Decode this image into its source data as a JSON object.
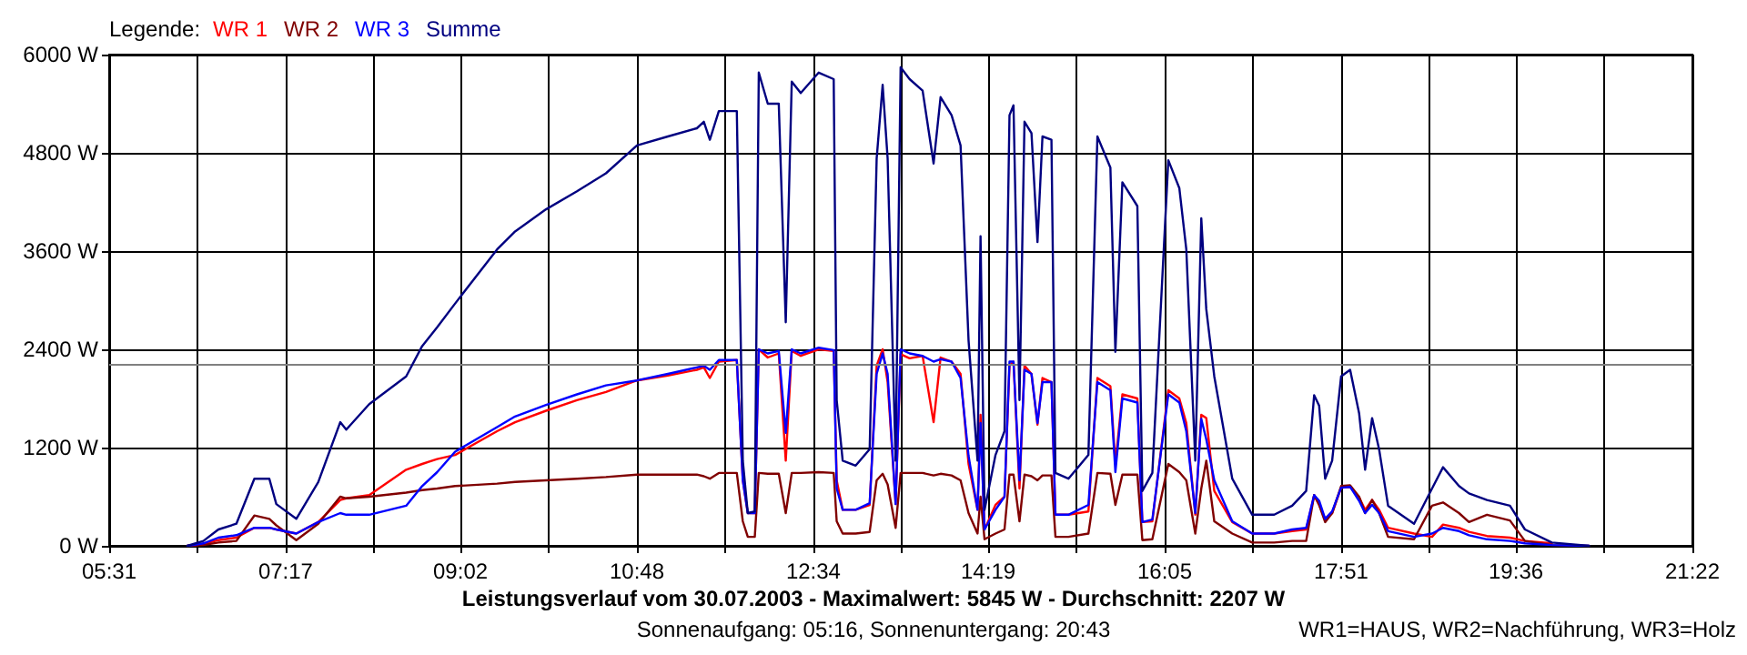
{
  "chart_data": {
    "type": "line",
    "title": "Leistungsverlauf vom 30.07.2003 - Maximalwert: 5845 W - Durchschnitt: 2207 W",
    "subtitle": "Sonnenaufgang: 05:16, Sonnenuntergang: 20:43",
    "legend_title": "Legende:",
    "annotations": [
      "WR1=HAUS, WR2=Nachführung, WR3=Holz"
    ],
    "x": [
      6.3,
      6.46,
      6.61,
      6.79,
      6.97,
      7.12,
      7.19,
      7.39,
      7.61,
      7.83,
      7.89,
      8.12,
      8.49,
      8.65,
      8.8,
      8.98,
      9.4,
      9.58,
      9.89,
      10.2,
      10.49,
      10.8,
      11.11,
      11.4,
      11.47,
      11.53,
      11.62,
      11.8,
      11.86,
      11.91,
      11.98,
      12.02,
      12.11,
      12.22,
      12.29,
      12.35,
      12.44,
      12.62,
      12.77,
      12.8,
      12.86,
      12.99,
      13.13,
      13.2,
      13.26,
      13.31,
      13.39,
      13.44,
      13.53,
      13.66,
      13.77,
      13.84,
      13.95,
      14.04,
      14.12,
      14.21,
      14.24,
      14.28,
      14.39,
      14.48,
      14.53,
      14.57,
      14.63,
      14.68,
      14.75,
      14.81,
      14.86,
      14.95,
      14.99,
      15.12,
      15.32,
      15.41,
      15.54,
      15.59,
      15.66,
      15.81,
      15.86,
      15.96,
      16.12,
      16.23,
      16.3,
      16.39,
      16.45,
      16.5,
      16.58,
      16.76,
      16.96,
      17.18,
      17.36,
      17.5,
      17.58,
      17.63,
      17.69,
      17.76,
      17.85,
      17.94,
      18.03,
      18.09,
      18.16,
      18.23,
      18.32,
      18.58,
      18.76,
      18.87,
      19.03,
      19.13,
      19.31,
      19.54,
      19.69,
      19.96,
      20.33
    ],
    "series": [
      {
        "name": "WR 1",
        "color": "#ff0000",
        "values": [
          0,
          20,
          70,
          100,
          220,
          220,
          200,
          150,
          290,
          560,
          580,
          620,
          930,
          1000,
          1060,
          1110,
          1400,
          1510,
          1650,
          1780,
          1880,
          2020,
          2080,
          2150,
          2180,
          2050,
          2250,
          2270,
          800,
          400,
          400,
          2400,
          2300,
          2350,
          1040,
          2380,
          2320,
          2400,
          2380,
          800,
          440,
          440,
          500,
          2200,
          2400,
          2000,
          510,
          2340,
          2290,
          2320,
          1510,
          2300,
          2250,
          2100,
          1000,
          440,
          1600,
          200,
          500,
          600,
          2200,
          2250,
          700,
          2200,
          2100,
          1480,
          2050,
          2000,
          380,
          380,
          420,
          2050,
          1950,
          1000,
          1850,
          1800,
          290,
          300,
          1900,
          1800,
          1500,
          380,
          1600,
          1560,
          670,
          290,
          150,
          150,
          180,
          200,
          620,
          500,
          330,
          400,
          710,
          720,
          590,
          440,
          560,
          440,
          220,
          150,
          110,
          260,
          220,
          170,
          120,
          100,
          60,
          30,
          null
        ]
      },
      {
        "name": "WR 2",
        "color": "#800000",
        "values": [
          0,
          10,
          40,
          60,
          370,
          330,
          250,
          70,
          270,
          600,
          580,
          600,
          650,
          680,
          700,
          730,
          760,
          780,
          800,
          820,
          840,
          870,
          870,
          870,
          850,
          820,
          890,
          890,
          300,
          110,
          110,
          890,
          880,
          880,
          400,
          890,
          890,
          900,
          890,
          300,
          150,
          150,
          170,
          800,
          880,
          750,
          220,
          890,
          890,
          890,
          860,
          880,
          860,
          800,
          400,
          150,
          600,
          80,
          150,
          200,
          870,
          870,
          300,
          870,
          850,
          800,
          860,
          860,
          110,
          110,
          150,
          890,
          880,
          500,
          870,
          870,
          70,
          80,
          1000,
          900,
          800,
          150,
          700,
          1040,
          300,
          150,
          40,
          40,
          60,
          60,
          620,
          500,
          290,
          400,
          730,
          740,
          600,
          400,
          560,
          400,
          110,
          80,
          490,
          530,
          400,
          290,
          380,
          310,
          60,
          10,
          0
        ]
      },
      {
        "name": "WR 3",
        "color": "#0000ff",
        "values": [
          0,
          30,
          100,
          130,
          220,
          220,
          200,
          150,
          290,
          400,
          380,
          380,
          490,
          730,
          900,
          1150,
          1450,
          1580,
          1720,
          1850,
          1960,
          2020,
          2100,
          2180,
          2200,
          2150,
          2270,
          2270,
          800,
          400,
          400,
          2400,
          2350,
          2380,
          1380,
          2400,
          2350,
          2420,
          2390,
          700,
          440,
          440,
          520,
          2100,
          2350,
          2100,
          510,
          2400,
          2350,
          2320,
          2250,
          2280,
          2250,
          2050,
          1100,
          440,
          1500,
          200,
          440,
          600,
          2250,
          2250,
          800,
          2150,
          2100,
          1500,
          2000,
          2000,
          380,
          380,
          500,
          2000,
          1900,
          900,
          1800,
          1750,
          290,
          320,
          1850,
          1750,
          1400,
          400,
          1550,
          1300,
          800,
          300,
          150,
          150,
          200,
          220,
          620,
          550,
          330,
          420,
          710,
          720,
          550,
          400,
          500,
          400,
          180,
          110,
          150,
          220,
          180,
          130,
          80,
          60,
          30,
          10,
          0
        ]
      },
      {
        "name": "Summe",
        "color": "#000080",
        "values": [
          0,
          60,
          200,
          270,
          820,
          820,
          510,
          330,
          780,
          1510,
          1420,
          1730,
          2070,
          2440,
          2670,
          2960,
          3620,
          3840,
          4110,
          4330,
          4550,
          4890,
          5000,
          5100,
          5180,
          4960,
          5310,
          5310,
          1040,
          400,
          420,
          5780,
          5400,
          5400,
          2730,
          5670,
          5530,
          5780,
          5700,
          1780,
          1040,
          980,
          1180,
          4730,
          5630,
          4730,
          1040,
          5845,
          5700,
          5560,
          4670,
          5480,
          5260,
          4890,
          2510,
          1040,
          3780,
          440,
          1110,
          1400,
          5260,
          5380,
          1780,
          5180,
          5040,
          3710,
          5000,
          4960,
          890,
          820,
          1110,
          5000,
          4620,
          2370,
          4440,
          4150,
          670,
          890,
          4710,
          4370,
          3620,
          1040,
          4000,
          2890,
          2070,
          820,
          380,
          380,
          490,
          670,
          1840,
          1710,
          820,
          1040,
          2070,
          2150,
          1620,
          930,
          1560,
          1180,
          490,
          270,
          700,
          960,
          730,
          640,
          560,
          490,
          200,
          40,
          0
        ]
      }
    ],
    "xlim": [
      5.5167,
      21.3667
    ],
    "xticks": [
      {
        "value": 5.5167,
        "label": "05:31"
      },
      {
        "value": 6.4,
        "label": null
      },
      {
        "value": 7.2833,
        "label": "07:17"
      },
      {
        "value": 8.1583,
        "label": null
      },
      {
        "value": 9.0333,
        "label": "09:02"
      },
      {
        "value": 9.9167,
        "label": null
      },
      {
        "value": 10.8,
        "label": "10:48"
      },
      {
        "value": 11.6833,
        "label": null
      },
      {
        "value": 12.5667,
        "label": "12:34"
      },
      {
        "value": 13.4417,
        "label": null
      },
      {
        "value": 14.3167,
        "label": "14:19"
      },
      {
        "value": 15.2,
        "label": null
      },
      {
        "value": 16.0833,
        "label": "16:05"
      },
      {
        "value": 16.9667,
        "label": null
      },
      {
        "value": 17.85,
        "label": "17:51"
      },
      {
        "value": 18.725,
        "label": null
      },
      {
        "value": 19.6,
        "label": "19:36"
      },
      {
        "value": 20.4833,
        "label": null
      },
      {
        "value": 21.3667,
        "label": "21:22"
      }
    ],
    "ylim": [
      0,
      6000
    ],
    "yticks": [
      {
        "value": 0,
        "label": "0 W"
      },
      {
        "value": 1200,
        "label": "1200 W"
      },
      {
        "value": 2400,
        "label": "2400 W"
      },
      {
        "value": 3600,
        "label": "3600 W"
      },
      {
        "value": 4800,
        "label": "4800 W"
      },
      {
        "value": 6000,
        "label": "6000 W"
      }
    ],
    "ref_lines": [
      {
        "axis": "y",
        "value": 2207,
        "color": "#808080"
      }
    ],
    "grid": true,
    "legend": "top left",
    "marker": "none"
  }
}
